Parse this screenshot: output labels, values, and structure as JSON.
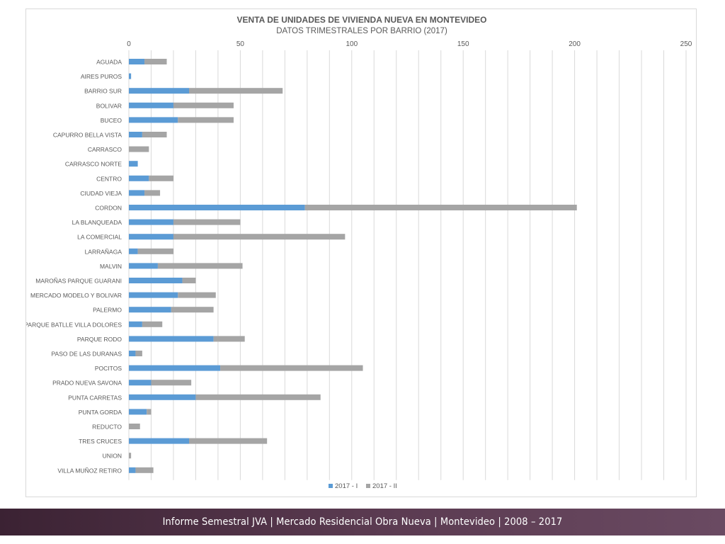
{
  "footer": {
    "text": "Informe Semestral JVA | Mercado Residencial Obra Nueva | Montevideo | 2008 – 2017"
  },
  "chart_data": {
    "type": "bar",
    "orientation": "horizontal",
    "stacked": true,
    "title": "VENTA DE UNIDADES DE VIVIENDA NUEVA EN MONTEVIDEO",
    "subtitle": "DATOS TRIMESTRALES POR BARRIO (2017)",
    "xlim": [
      0,
      250
    ],
    "xticks": [
      0,
      50,
      100,
      150,
      200,
      250
    ],
    "grid": true,
    "legend_position": "bottom",
    "categories": [
      "AGUADA",
      "AIRES PUROS",
      "BARRIO SUR",
      "BOLIVAR",
      "BUCEO",
      "CAPURRO BELLA VISTA",
      "CARRASCO",
      "CARRASCO NORTE",
      "CENTRO",
      "CIUDAD VIEJA",
      "CORDON",
      "LA BLANQUEADA",
      "LA COMERCIAL",
      "LARRAÑAGA",
      "MALVIN",
      "MAROÑAS PARQUE GUARANI",
      "MERCADO MODELO Y BOLIVAR",
      "PALERMO",
      "PARQUE BATLLE VILLA DOLORES",
      "PARQUE RODO",
      "PASO DE LAS DURANAS",
      "POCITOS",
      "PRADO NUEVA SAVONA",
      "PUNTA CARRETAS",
      "PUNTA GORDA",
      "REDUCTO",
      "TRES CRUCES",
      "UNION",
      "VILLA MUÑOZ RETIRO"
    ],
    "series": [
      {
        "name": "2017 - I",
        "color": "#5b9bd5",
        "values": [
          7,
          1,
          27,
          20,
          22,
          6,
          0,
          4,
          9,
          7,
          79,
          20,
          20,
          4,
          13,
          24,
          22,
          19,
          6,
          38,
          3,
          41,
          10,
          30,
          8,
          0,
          27,
          0,
          3
        ]
      },
      {
        "name": "2017 - II",
        "color": "#a5a5a5",
        "values": [
          10,
          0,
          42,
          27,
          25,
          11,
          9,
          0,
          11,
          7,
          122,
          30,
          77,
          16,
          38,
          6,
          17,
          19,
          9,
          14,
          3,
          64,
          18,
          56,
          2,
          5,
          35,
          1,
          8
        ]
      }
    ]
  }
}
